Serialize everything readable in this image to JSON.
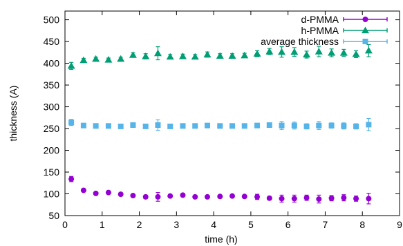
{
  "chart_data": {
    "type": "scatter",
    "xlabel": "time (h)",
    "ylabel": "thickness (A)",
    "xlim": [
      0,
      9
    ],
    "ylim": [
      50,
      520
    ],
    "xticks": [
      "0",
      "1",
      "2",
      "3",
      "4",
      "5",
      "6",
      "7",
      "8",
      "9"
    ],
    "yticks": [
      "50",
      "100",
      "150",
      "200",
      "250",
      "300",
      "350",
      "400",
      "450",
      "500"
    ],
    "grid": false,
    "legend_position": "top-right",
    "series": [
      {
        "name": "d-PMMA",
        "color": "#9400d3",
        "marker": "circle",
        "x": [
          0.17,
          0.5,
          0.83,
          1.17,
          1.5,
          1.83,
          2.17,
          2.5,
          2.83,
          3.17,
          3.5,
          3.83,
          4.17,
          4.5,
          4.83,
          5.17,
          5.5,
          5.83,
          6.17,
          6.5,
          6.83,
          7.17,
          7.5,
          7.83,
          8.17
        ],
        "y": [
          134,
          108,
          101,
          103,
          99,
          96,
          93,
          93,
          95,
          97,
          93,
          93,
          94,
          95,
          94,
          93,
          90,
          89,
          89,
          91,
          88,
          90,
          91,
          89,
          89
        ],
        "err": [
          6,
          3,
          3,
          3,
          3,
          3,
          4,
          10,
          3,
          3,
          3,
          3,
          3,
          3,
          3,
          6,
          4,
          8,
          8,
          6,
          9,
          6,
          7,
          6,
          12
        ]
      },
      {
        "name": "h-PMMA",
        "color": "#009e73",
        "marker": "triangle",
        "x": [
          0.17,
          0.5,
          0.83,
          1.17,
          1.5,
          1.83,
          2.17,
          2.5,
          2.83,
          3.17,
          3.5,
          3.83,
          4.17,
          4.5,
          4.83,
          5.17,
          5.5,
          5.83,
          6.17,
          6.5,
          6.83,
          7.17,
          7.5,
          7.83,
          8.17
        ],
        "y": [
          394,
          407,
          410,
          408,
          410,
          419,
          416,
          423,
          415,
          416,
          415,
          420,
          417,
          417,
          418,
          422,
          427,
          426,
          426,
          420,
          427,
          424,
          424,
          421,
          429
        ],
        "err": [
          8,
          4,
          4,
          4,
          4,
          5,
          6,
          15,
          5,
          5,
          5,
          6,
          5,
          5,
          5,
          7,
          7,
          12,
          10,
          8,
          12,
          9,
          8,
          8,
          14
        ]
      },
      {
        "name": "average thickness",
        "color": "#56b4e9",
        "marker": "square",
        "x": [
          0.17,
          0.5,
          0.83,
          1.17,
          1.5,
          1.83,
          2.17,
          2.5,
          2.83,
          3.17,
          3.5,
          3.83,
          4.17,
          4.5,
          4.83,
          5.17,
          5.5,
          5.83,
          6.17,
          6.5,
          6.83,
          7.17,
          7.5,
          7.83,
          8.17
        ],
        "y": [
          264,
          257,
          256,
          256,
          255,
          258,
          255,
          258,
          255,
          256,
          256,
          257,
          256,
          256,
          256,
          257,
          258,
          257,
          257,
          255,
          257,
          257,
          256,
          255,
          259
        ],
        "err": [
          7,
          3,
          3,
          3,
          3,
          3,
          4,
          12,
          3,
          3,
          3,
          4,
          3,
          3,
          3,
          5,
          4,
          9,
          8,
          6,
          9,
          6,
          7,
          6,
          14
        ]
      }
    ]
  }
}
